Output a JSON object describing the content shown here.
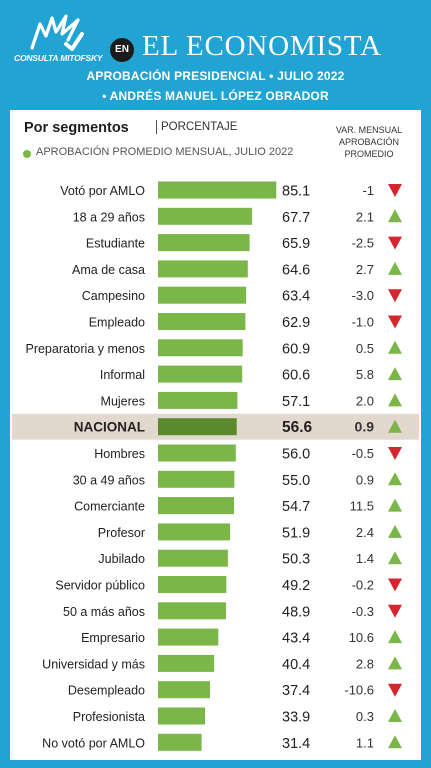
{
  "header": {
    "logo_text": "CONSULTA MITOFSKY",
    "en_badge": "EN",
    "brand": "EL ECONOMISTA",
    "subtitle_1": "APROBACIÓN PRESIDENCIAL • JULIO 2022",
    "subtitle_2": "• ANDRÉS MANUEL LÓPEZ OBRADOR"
  },
  "section": {
    "title": "Por segmentos",
    "unit": "PORCENTAJE",
    "legend": "APROBACIÓN PROMEDIO MENSUAL, JULIO 2022",
    "var_header_1": "VAR. MENSUAL",
    "var_header_2": "APROBACIÓN",
    "var_header_3": "PROMEDIO"
  },
  "colors": {
    "background": "#21a4d3",
    "bar": "#7ab648",
    "bar_highlight": "#5a8a2c",
    "highlight_row": "#e2d8cd",
    "up": "#7ab648",
    "down": "#d4262c"
  },
  "chart_data": {
    "type": "bar",
    "orientation": "horizontal",
    "xlim": [
      0,
      100
    ],
    "categories": [
      "Votó por AMLO",
      "18 a 29 años",
      "Estudiante",
      "Ama de casa",
      "Campesino",
      "Empleado",
      "Preparatoria y menos",
      "Informal",
      "Mujeres",
      "NACIONAL",
      "Hombres",
      "30 a 49 años",
      "Comerciante",
      "Profesor",
      "Jubilado",
      "Servidor público",
      "50 a más años",
      "Empresario",
      "Universidad y más",
      "Desempleado",
      "Profesionista",
      "No votó por AMLO"
    ],
    "values": [
      "85.1",
      "67.7",
      "65.9",
      "64.6",
      "63.4",
      "62.9",
      "60.9",
      "60.6",
      "57.1",
      "56.6",
      "56.0",
      "55.0",
      "54.7",
      "51.9",
      "50.3",
      "49.2",
      "48.9",
      "43.4",
      "40.4",
      "37.4",
      "33.9",
      "31.4"
    ],
    "variation": [
      "-1",
      "2.1",
      "-2.5",
      "2.7",
      "-3.0",
      "-1.0",
      "0.5",
      "5.8",
      "2.0",
      "0.9",
      "-0.5",
      "0.9",
      "11.5",
      "2.4",
      "1.4",
      "-0.2",
      "-0.3",
      "10.6",
      "2.8",
      "-10.6",
      "0.3",
      "1.1"
    ],
    "highlight": "NACIONAL"
  }
}
